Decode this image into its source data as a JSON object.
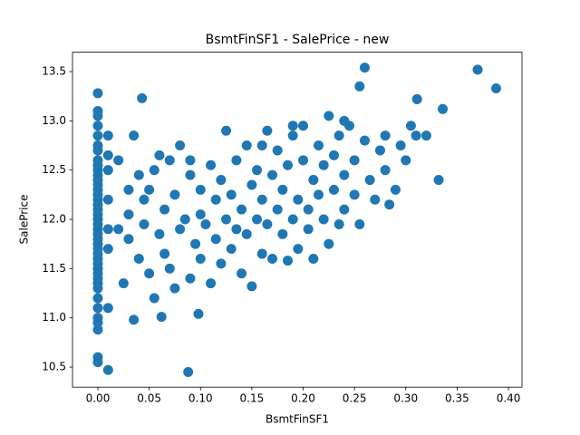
{
  "chart_data": {
    "type": "scatter",
    "title": "BsmtFinSF1 - SalePrice - new",
    "x_label": "BsmtFinSF1",
    "y_label": "SalePrice",
    "color": "#1f77b4",
    "xlim": [
      -0.0247,
      0.4132
    ],
    "ylim": [
      10.296,
      13.697
    ],
    "xticks": [
      {
        "value": 0,
        "label": "0.00"
      },
      0.05,
      {
        "value": 0.1,
        "label": "0.10"
      },
      0.15,
      {
        "value": 0.2,
        "label": "0.20"
      },
      0.25,
      {
        "value": 0.3,
        "label": "0.30"
      },
      0.35,
      {
        "value": 0.4,
        "label": "0.40"
      }
    ],
    "yticks": [
      10.5,
      {
        "value": 11,
        "label": "11.0"
      },
      11.5,
      {
        "value": 12,
        "label": "12.0"
      },
      12.5,
      {
        "value": 13,
        "label": "13.0"
      },
      13.5
    ],
    "x": [
      0,
      0,
      0,
      0,
      0,
      0,
      0,
      0,
      0,
      0,
      0,
      0,
      0,
      0,
      0,
      0,
      0,
      0,
      0,
      0,
      0,
      0,
      0,
      0,
      0,
      0,
      0,
      0,
      0,
      0,
      0,
      0,
      0,
      0,
      0,
      0,
      0,
      0,
      0,
      0,
      0,
      0.01,
      0.01,
      0.01,
      0.01,
      0.01,
      0.01,
      0.01,
      0.01,
      0.02,
      0.025,
      0.03,
      0.03,
      0.035,
      0.035,
      0.04,
      0.04,
      0.043,
      0.045,
      0.05,
      0.05,
      0.055,
      0.055,
      0.06,
      0.06,
      0.062,
      0.065,
      0.07,
      0.07,
      0.075,
      0.075,
      0.08,
      0.08,
      0.085,
      0.088,
      0.09,
      0.09,
      0.095,
      0.098,
      0.1,
      0.1,
      0.1,
      0.105,
      0.11,
      0.11,
      0.115,
      0.115,
      0.12,
      0.12,
      0.125,
      0.125,
      0.13,
      0.13,
      0.135,
      0.135,
      0.14,
      0.14,
      0.145,
      0.145,
      0.15,
      0.15,
      0.155,
      0.155,
      0.16,
      0.16,
      0.165,
      0.165,
      0.17,
      0.17,
      0.175,
      0.175,
      0.18,
      0.18,
      0.185,
      0.185,
      0.19,
      0.19,
      0.195,
      0.195,
      0.2,
      0.2,
      0.205,
      0.205,
      0.21,
      0.21,
      0.215,
      0.215,
      0.22,
      0.22,
      0.225,
      0.225,
      0.23,
      0.23,
      0.235,
      0.235,
      0.24,
      0.24,
      0.245,
      0.25,
      0.25,
      0.255,
      0.26,
      0.26,
      0.265,
      0.27,
      0.275,
      0.28,
      0.28,
      0.284,
      0.29,
      0.295,
      0.3,
      0.305,
      0.31,
      0.311,
      0.32,
      0.332,
      0.336,
      0.37,
      0.388,
      0.255,
      0.24,
      0.19,
      0.16,
      0.09,
      0.065,
      0.045,
      0.02,
      0.03
    ],
    "y": [
      13.28,
      13.1,
      13.05,
      12.95,
      12.85,
      12.75,
      12.7,
      12.6,
      12.55,
      12.5,
      12.45,
      12.4,
      12.35,
      12.3,
      12.25,
      12.2,
      12.15,
      12.1,
      12.05,
      12.0,
      11.95,
      11.9,
      11.85,
      11.8,
      11.75,
      11.7,
      11.65,
      11.6,
      11.55,
      11.5,
      11.45,
      11.4,
      11.35,
      11.3,
      11.2,
      11.1,
      11.0,
      10.95,
      10.88,
      10.6,
      10.55,
      12.85,
      12.65,
      12.5,
      12.2,
      11.9,
      11.7,
      11.1,
      10.47,
      12.6,
      11.35,
      11.8,
      12.05,
      12.85,
      10.98,
      12.45,
      11.6,
      13.23,
      11.95,
      12.3,
      11.45,
      12.5,
      11.2,
      12.65,
      11.85,
      11.01,
      12.1,
      12.6,
      11.5,
      11.3,
      12.25,
      12.75,
      11.9,
      12.0,
      10.45,
      12.45,
      11.4,
      11.75,
      11.04,
      12.3,
      12.05,
      11.6,
      11.95,
      12.55,
      11.35,
      12.2,
      11.8,
      12.4,
      11.55,
      12.0,
      12.9,
      11.7,
      12.25,
      12.6,
      11.9,
      12.1,
      11.45,
      12.75,
      11.85,
      12.35,
      11.32,
      12.0,
      12.5,
      11.65,
      12.2,
      12.9,
      11.95,
      12.45,
      11.6,
      12.1,
      12.7,
      11.85,
      12.3,
      11.58,
      12.55,
      12.0,
      12.85,
      12.2,
      11.7,
      12.6,
      12.95,
      12.1,
      11.9,
      12.4,
      11.6,
      12.75,
      12.25,
      12.0,
      12.55,
      13.05,
      11.75,
      12.3,
      12.65,
      11.95,
      12.85,
      12.45,
      12.1,
      12.95,
      12.6,
      12.25,
      11.95,
      13.54,
      12.8,
      12.4,
      12.2,
      12.7,
      12.85,
      12.5,
      12.15,
      12.3,
      12.75,
      12.6,
      12.95,
      12.85,
      13.22,
      12.85,
      12.4,
      13.12,
      13.52,
      13.33,
      13.35,
      13.0,
      12.95,
      12.75,
      12.6,
      11.65,
      12.2,
      11.9,
      12.3
    ]
  }
}
